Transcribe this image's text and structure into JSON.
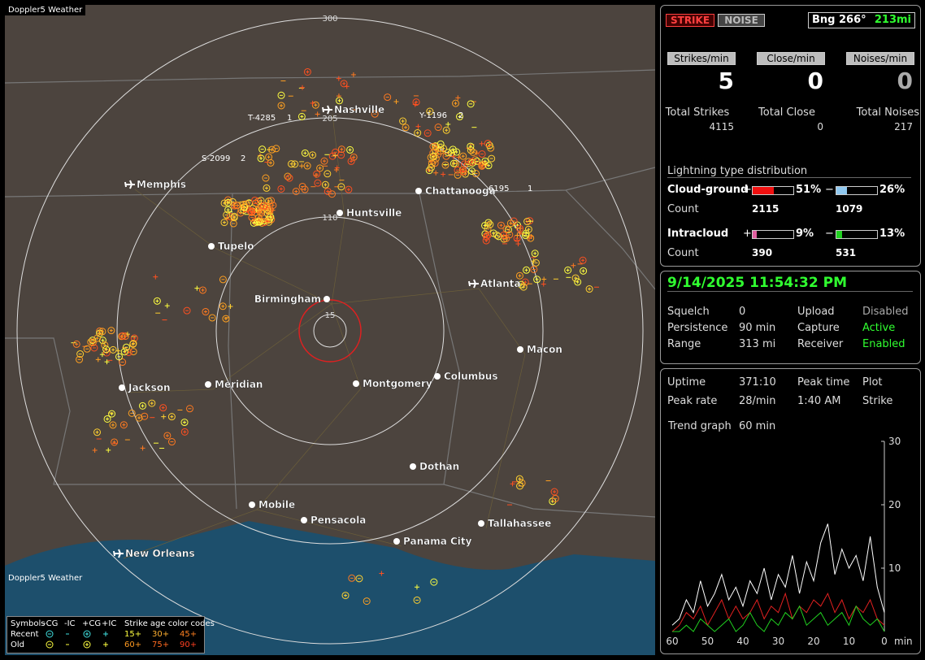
{
  "map": {
    "title": "Doppler5 Weather",
    "watermark": "Doppler5 Weather",
    "range_rings": [
      "300",
      "205",
      "110",
      "15"
    ],
    "cities": [
      {
        "name": "Nashville"
      },
      {
        "name": "Memphis"
      },
      {
        "name": "Chattanooga"
      },
      {
        "name": "Huntsville"
      },
      {
        "name": "Tupelo"
      },
      {
        "name": "Birmingham"
      },
      {
        "name": "Atlanta"
      },
      {
        "name": "Macon"
      },
      {
        "name": "Jackson"
      },
      {
        "name": "Meridian"
      },
      {
        "name": "Montgomery"
      },
      {
        "name": "Columbus"
      },
      {
        "name": "Dothan"
      },
      {
        "name": "Mobile"
      },
      {
        "name": "Pensacola"
      },
      {
        "name": "Tallahassee"
      },
      {
        "name": "Panama City"
      },
      {
        "name": "New Orleans"
      }
    ],
    "storms": [
      {
        "id": "T-4285",
        "count": "1"
      },
      {
        "id": "Y-1196",
        "count": "2"
      },
      {
        "id": "S-2099",
        "count": "2"
      },
      {
        "id": "6195",
        "count": "1"
      }
    ],
    "legend": {
      "symbols": "Symbols",
      "types": [
        "-CG",
        "-IC",
        "+CG",
        "+IC"
      ],
      "age_title": "Strike age color codes",
      "recent": "Recent",
      "old": "Old",
      "recent_ages": [
        "15+",
        "30+",
        "45+"
      ],
      "old_ages": [
        "60+",
        "75+",
        "90+"
      ]
    }
  },
  "status": {
    "strike_btn": "STRIKE",
    "noise_btn": "NOISE",
    "bearing": "Bng 266°",
    "distance": "213mi",
    "rates": [
      {
        "label": "Strikes/min",
        "value": "5"
      },
      {
        "label": "Close/min",
        "value": "0"
      },
      {
        "label": "Noises/min",
        "value": "0"
      }
    ],
    "totals": [
      {
        "label": "Total Strikes",
        "value": "4115"
      },
      {
        "label": "Total Close",
        "value": "0"
      },
      {
        "label": "Total Noises",
        "value": "217"
      }
    ],
    "dist_title": "Lightning type distribution",
    "cg": {
      "label": "Cloud-ground",
      "plus": "+",
      "plus_pct": "51%",
      "minus": "−",
      "minus_pct": "26%",
      "count_label": "Count",
      "plus_count": "2115",
      "minus_count": "1079"
    },
    "ic": {
      "label": "Intracloud",
      "plus": "+",
      "plus_pct": "9%",
      "minus": "−",
      "minus_pct": "13%",
      "count_label": "Count",
      "plus_count": "390",
      "minus_count": "531"
    }
  },
  "settings": {
    "datetime": "9/14/2025 11:54:32 PM",
    "rows": [
      [
        "Squelch",
        "0",
        "Upload",
        "Disabled"
      ],
      [
        "Persistence",
        "90 min",
        "Capture",
        "Active"
      ],
      [
        "Range",
        "313 mi",
        "Receiver",
        "Enabled"
      ]
    ]
  },
  "stats": {
    "rows": [
      [
        "Uptime",
        "371:10",
        "Peak time",
        "Plot"
      ],
      [
        "Peak rate",
        "28/min",
        "1:40 AM",
        "Strike"
      ]
    ],
    "trend_label": "Trend graph",
    "trend_value": "60 min",
    "trend": {
      "ylim": [
        0,
        30
      ],
      "yticks": [
        10,
        20,
        30
      ],
      "xlim": [
        60,
        0
      ],
      "xticks": [
        60,
        50,
        40,
        30,
        20,
        10,
        0
      ],
      "xlabel": "min",
      "x": [
        60,
        58,
        56,
        54,
        52,
        50,
        48,
        46,
        44,
        42,
        40,
        38,
        36,
        34,
        32,
        30,
        28,
        26,
        24,
        22,
        20,
        18,
        16,
        14,
        12,
        10,
        8,
        6,
        4,
        2,
        0
      ],
      "series": [
        {
          "color": "#ffffff",
          "values": [
            1,
            2,
            5,
            3,
            8,
            4,
            6,
            9,
            5,
            7,
            4,
            8,
            6,
            10,
            5,
            9,
            7,
            12,
            6,
            11,
            8,
            14,
            17,
            9,
            13,
            10,
            12,
            8,
            15,
            7,
            3
          ]
        },
        {
          "color": "#e02020",
          "values": [
            0,
            1,
            3,
            2,
            4,
            1,
            3,
            5,
            2,
            4,
            2,
            3,
            5,
            2,
            4,
            3,
            6,
            2,
            4,
            3,
            5,
            4,
            6,
            3,
            5,
            2,
            4,
            3,
            5,
            2,
            1
          ]
        },
        {
          "color": "#20d020",
          "values": [
            0,
            0,
            1,
            0,
            2,
            1,
            0,
            1,
            2,
            0,
            1,
            3,
            1,
            0,
            2,
            1,
            3,
            2,
            4,
            1,
            2,
            3,
            1,
            2,
            3,
            1,
            4,
            2,
            1,
            2,
            0
          ]
        }
      ]
    }
  }
}
